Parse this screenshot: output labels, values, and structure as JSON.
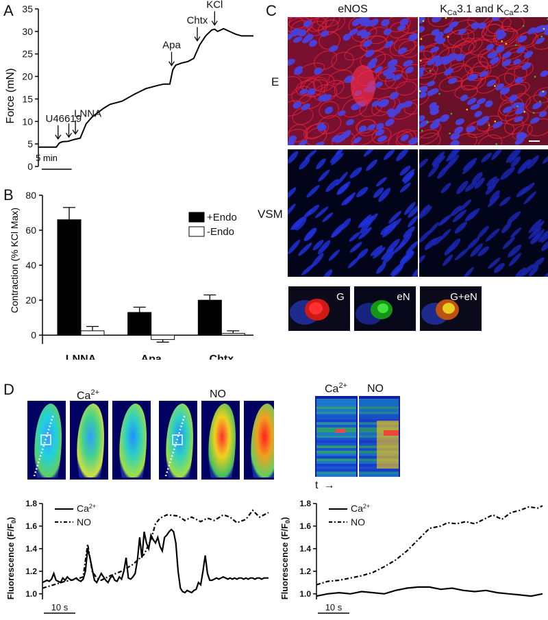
{
  "panels": {
    "A": "A",
    "B": "B",
    "C": "C",
    "D": "D"
  },
  "panelA": {
    "ylabel": "Force (mN)",
    "yticks": [
      "0",
      "5",
      "10",
      "15",
      "20",
      "25",
      "30",
      "35"
    ],
    "scalebar": "5 min",
    "annotations": [
      "U46619",
      "LNNA",
      "Apa",
      "Chtx",
      "KCl"
    ]
  },
  "panelC": {
    "col1": "eNOS",
    "col2_parts": [
      "K",
      "Ca",
      "3.1 and K",
      "Ca",
      "2.3"
    ],
    "row1": "E",
    "row2": "VSM",
    "insets": [
      "G",
      "eN",
      "G+eN"
    ],
    "colors": {
      "actin": "#c8102e",
      "nuclei": "#1f2cc8",
      "green": "#20c020",
      "yellow": "#e6d020"
    }
  },
  "panelD": {
    "ca_label": "Ca",
    "ca_sup": "2+",
    "no_label": "NO",
    "t_label": "t",
    "legend_ca": "Ca",
    "legend_ca_sup": "2+",
    "legend_no": "NO",
    "ylabel_main": "Fluorescence (F/F",
    "ylabel_sub": "0",
    "ylabel_end": ")",
    "yticks": [
      "1.0",
      "1.2",
      "1.4",
      "1.6",
      "1.8"
    ],
    "scalebar": "10 s"
  },
  "chart_data": [
    {
      "type": "line",
      "panel": "A",
      "ylabel": "Force (mN)",
      "ylim": [
        0,
        35
      ],
      "x_unit": "min",
      "series": [
        {
          "x": [
            0,
            3,
            3.5,
            4,
            5,
            6,
            7,
            8,
            9,
            10,
            11,
            12,
            14,
            16,
            18,
            20,
            21,
            22,
            22.5,
            23,
            24,
            25,
            26,
            27,
            28,
            29,
            29.5,
            30,
            31,
            32,
            33,
            34,
            35,
            36
          ],
          "values": [
            4.3,
            4.3,
            5.2,
            5.5,
            5.6,
            6.0,
            6.3,
            9.5,
            11.0,
            12.0,
            13.0,
            13.8,
            14.5,
            16.0,
            17.3,
            18.0,
            18.3,
            18.3,
            21.5,
            22.5,
            23.0,
            23.3,
            24.0,
            27.0,
            29.0,
            30.3,
            30.5,
            30.0,
            30.6,
            30.0,
            29.4,
            29.0,
            29.0,
            29.0
          ]
        }
      ],
      "events": [
        {
          "label": "U46619",
          "x": 3.3
        },
        {
          "label": "LNNA",
          "x": 6.2
        },
        {
          "label": "Apa",
          "x": 22.3
        },
        {
          "label": "Chtx",
          "x": 26.6
        },
        {
          "label": "KCl",
          "x": 29.5
        }
      ]
    },
    {
      "type": "bar",
      "panel": "B",
      "ylabel": "Contraction (% KCl Max)",
      "ylim": [
        -5,
        80
      ],
      "yticks": [
        0,
        20,
        40,
        60,
        80
      ],
      "categories": [
        "LNNA",
        "Apa",
        "Chtx"
      ],
      "series": [
        {
          "name": "+Endo",
          "values": [
            66,
            13,
            20
          ],
          "errors": [
            7,
            3,
            3
          ],
          "color": "#000000"
        },
        {
          "name": "-Endo",
          "values": [
            2.5,
            -2.5,
            1
          ],
          "errors": [
            2.5,
            1.5,
            1.5
          ],
          "color": "#ffffff"
        }
      ],
      "legend": "top-right"
    },
    {
      "type": "line",
      "panel": "D-left",
      "ylabel": "Fluorescence (F/F0)",
      "ylim": [
        0.95,
        1.8
      ],
      "x_unit": "s",
      "series": [
        {
          "name": "Ca2+",
          "style": "solid",
          "x": [
            0,
            1,
            2,
            3,
            4,
            5,
            6,
            7,
            8,
            9,
            10,
            11,
            12,
            13,
            14,
            15,
            16,
            17,
            18,
            19,
            20,
            21,
            22,
            23,
            24,
            25,
            26,
            27,
            28,
            29,
            30,
            31,
            32,
            33,
            34,
            35,
            36,
            37,
            38,
            39,
            40,
            41,
            42,
            43,
            44,
            45,
            46,
            47,
            48,
            49,
            50,
            51,
            52,
            53,
            54,
            55,
            56,
            57,
            58,
            59,
            60,
            61,
            62,
            63,
            64,
            65,
            66,
            67,
            68,
            69,
            70,
            71,
            72,
            73,
            74,
            75,
            76,
            77,
            78,
            79,
            80,
            81,
            82,
            83,
            84,
            85,
            86,
            87,
            88,
            89,
            90,
            91,
            92,
            93,
            94,
            95,
            96,
            97,
            98,
            99,
            100
          ],
          "values": [
            1.1,
            1.11,
            1.12,
            1.11,
            1.13,
            1.18,
            1.12,
            1.11,
            1.1,
            1.14,
            1.12,
            1.15,
            1.13,
            1.12,
            1.13,
            1.14,
            1.12,
            1.11,
            1.13,
            1.2,
            1.4,
            1.32,
            1.22,
            1.12,
            1.1,
            1.14,
            1.18,
            1.15,
            1.12,
            1.1,
            1.14,
            1.16,
            1.12,
            1.11,
            1.15,
            1.13,
            1.2,
            1.32,
            1.14,
            1.13,
            1.15,
            1.18,
            1.3,
            1.5,
            1.32,
            1.55,
            1.45,
            1.4,
            1.52,
            1.48,
            1.45,
            1.5,
            1.42,
            1.38,
            1.5,
            1.52,
            1.55,
            1.57,
            1.55,
            1.45,
            1.2,
            1.05,
            1.02,
            1.01,
            1.03,
            1.02,
            1.01,
            1.03,
            1.04,
            1.1,
            1.08,
            1.2,
            1.34,
            1.18,
            1.12,
            1.12,
            1.13,
            1.14,
            1.13,
            1.14,
            1.15,
            1.14,
            1.13,
            1.14,
            1.13,
            1.14,
            1.13,
            1.14,
            1.14,
            1.13,
            1.14,
            1.13,
            1.14,
            1.14,
            1.13,
            1.14,
            1.14,
            1.13,
            1.14,
            1.14,
            1.14
          ]
        },
        {
          "name": "NO",
          "style": "dashdot",
          "x": [
            0,
            5,
            10,
            15,
            18,
            20,
            22,
            24,
            26,
            30,
            35,
            40,
            45,
            48,
            50,
            52,
            55,
            60,
            63,
            66,
            70,
            73,
            76,
            80,
            83,
            86,
            90,
            93,
            96,
            100
          ],
          "values": [
            1.05,
            1.08,
            1.11,
            1.13,
            1.15,
            1.44,
            1.2,
            1.14,
            1.12,
            1.16,
            1.2,
            1.26,
            1.35,
            1.48,
            1.62,
            1.67,
            1.7,
            1.69,
            1.65,
            1.68,
            1.64,
            1.67,
            1.65,
            1.7,
            1.68,
            1.63,
            1.66,
            1.74,
            1.68,
            1.72
          ]
        }
      ],
      "legend": "top-left"
    },
    {
      "type": "line",
      "panel": "D-right",
      "ylabel": "Fluorescence (F/F0)",
      "ylim": [
        0.95,
        1.8
      ],
      "x_unit": "s",
      "series": [
        {
          "name": "Ca2+",
          "style": "solid",
          "x": [
            0,
            5,
            10,
            15,
            20,
            25,
            30,
            35,
            40,
            45,
            50,
            55,
            60,
            65,
            70,
            75,
            80,
            85,
            90,
            95,
            100
          ],
          "values": [
            0.98,
            1.0,
            1.01,
            1.0,
            1.02,
            1.01,
            1.0,
            1.03,
            1.05,
            1.06,
            1.06,
            1.04,
            1.05,
            1.03,
            1.02,
            1.03,
            1.01,
            1.0,
            0.99,
            0.98,
            1.0
          ]
        },
        {
          "name": "NO",
          "style": "dashdot",
          "x": [
            0,
            5,
            10,
            15,
            20,
            25,
            30,
            35,
            40,
            45,
            50,
            55,
            58,
            62,
            66,
            70,
            74,
            78,
            82,
            86,
            90,
            94,
            98,
            100
          ],
          "values": [
            1.08,
            1.11,
            1.12,
            1.14,
            1.16,
            1.19,
            1.24,
            1.3,
            1.38,
            1.48,
            1.58,
            1.6,
            1.63,
            1.62,
            1.64,
            1.62,
            1.66,
            1.7,
            1.66,
            1.72,
            1.74,
            1.77,
            1.76,
            1.78
          ]
        }
      ],
      "legend": "top-left"
    }
  ]
}
